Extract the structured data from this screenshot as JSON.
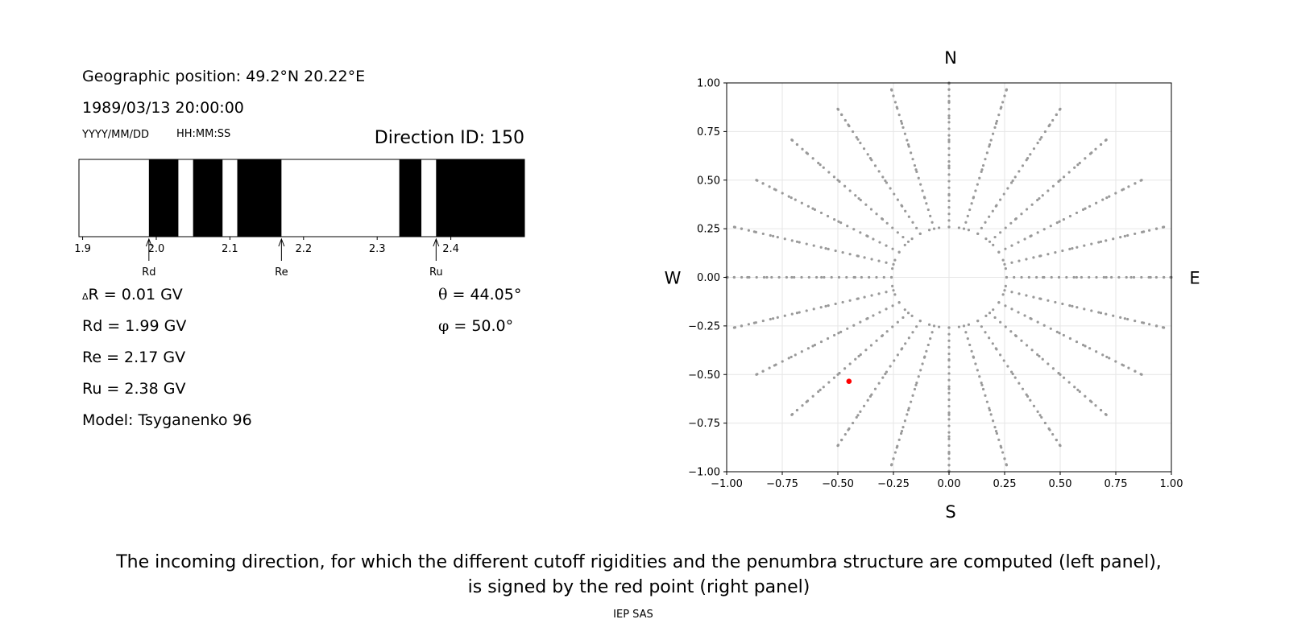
{
  "left_panel": {
    "geo_position": "Geographic position: 49.2°N 20.22°E",
    "datetime": "1989/03/13 20:00:00",
    "date_format": "YYYY/MM/DD",
    "time_format": "HH:MM:SS",
    "direction_id": "Direction ID: 150",
    "delta_r": "R = 0.01 GV",
    "delta_symbol": "Δ",
    "rd": "Rd = 1.99 GV",
    "re": "Re = 2.17 GV",
    "ru": "Ru = 2.38 GV",
    "model": "Model: Tsyganenko 96",
    "theta_symbol": "θ",
    "theta": "= 44.05°",
    "phi_symbol": "φ",
    "phi": "= 50.0°"
  },
  "caption_line1": "The incoming direction, for which the different cutoff rigidities and the penumbra structure are computed (left panel),",
  "caption_line2": "is signed by the red point (right panel)",
  "footer": "IEP SAS",
  "chart_data": [
    {
      "type": "bar",
      "description_type": "penumbra",
      "xlim": [
        1.895,
        2.5
      ],
      "xticks": [
        1.9,
        2.0,
        2.1,
        2.2,
        2.3,
        2.4
      ],
      "xtick_labels": [
        "1.9",
        "2.0",
        "2.1",
        "2.2",
        "2.3",
        "2.4"
      ],
      "forbidden_intervals": [
        [
          1.99,
          2.03
        ],
        [
          2.05,
          2.09
        ],
        [
          2.11,
          2.17
        ],
        [
          2.33,
          2.36
        ],
        [
          2.38,
          2.5
        ]
      ],
      "markers": [
        {
          "label": "Rd",
          "value": 1.99
        },
        {
          "label": "Re",
          "value": 2.17
        },
        {
          "label": "Ru",
          "value": 2.38
        }
      ],
      "colors": {
        "forbidden": "#000000",
        "allowed": "#ffffff"
      }
    },
    {
      "type": "scatter",
      "xlim": [
        -1.0,
        1.0
      ],
      "ylim": [
        -1.0,
        1.0
      ],
      "xticks": [
        "−1.00",
        "−0.75",
        "−0.50",
        "−0.25",
        "0.00",
        "0.25",
        "0.50",
        "0.75",
        "1.00"
      ],
      "yticks": [
        "−1.00",
        "−0.75",
        "−0.50",
        "−0.25",
        "0.00",
        "0.25",
        "0.50",
        "0.75",
        "1.00"
      ],
      "grid": true,
      "compass": {
        "N": "N",
        "S": "S",
        "E": "E",
        "W": "W"
      },
      "grid_points": {
        "rings": [
          0.2588,
          0.4226,
          0.5736,
          0.7071,
          0.8192,
          0.9063,
          0.9659,
          0.9962
        ],
        "spokes_deg": [
          0,
          15,
          30,
          45,
          60,
          75,
          90,
          105,
          120,
          135,
          150,
          165,
          180,
          195,
          210,
          225,
          240,
          255,
          270,
          285,
          300,
          315,
          330,
          345
        ],
        "ring_point_counts": [
          36,
          24,
          24,
          24,
          24,
          24,
          24,
          24
        ],
        "radial_extent": [
          0.2588,
          1.0
        ],
        "color": "#999999"
      },
      "selected_point": {
        "x": -0.45,
        "y": -0.535,
        "color": "#ff0000"
      }
    }
  ]
}
